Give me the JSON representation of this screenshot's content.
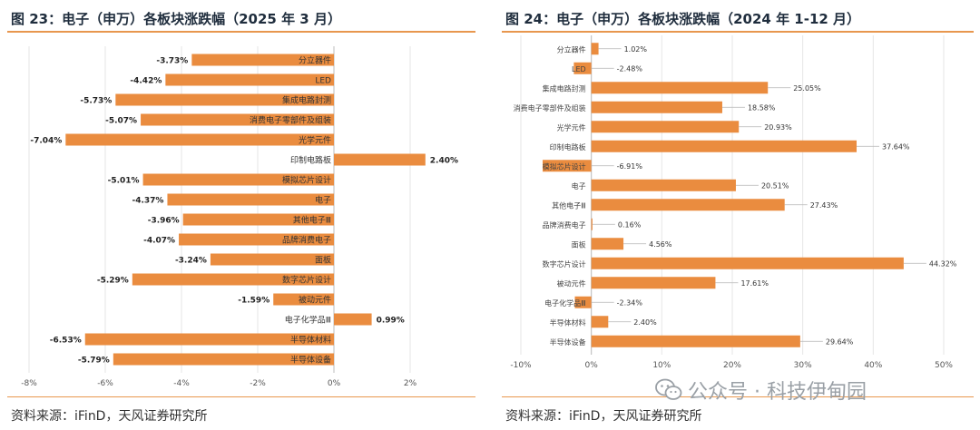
{
  "left": {
    "title": "图 23：电子（申万）各板块涨跌幅（2025 年 3 月）",
    "source": "资料来源：iFinD，天风证券研究所"
  },
  "right": {
    "title": "图 24：电子（申万）各板块涨跌幅（2024 年 1-12 月）",
    "source": "资料来源：iFinD，天风证券研究所"
  },
  "watermark": {
    "text": "公众号 · 科技伊甸园",
    "icon": "wechat-icon"
  },
  "colors": {
    "bar": "#ea8c3f",
    "rule": "#e8974e",
    "grid": "#e6e6e6"
  },
  "chart_data": [
    {
      "type": "bar",
      "orientation": "horizontal",
      "categories": [
        "分立器件",
        "LED",
        "集成电路封测",
        "消费电子零部件及组装",
        "光学元件",
        "印制电路板",
        "模拟芯片设计",
        "电子",
        "其他电子Ⅲ",
        "品牌消费电子",
        "面板",
        "数字芯片设计",
        "被动元件",
        "电子化学品Ⅲ",
        "半导体材料",
        "半导体设备"
      ],
      "values": [
        -3.73,
        -4.42,
        -5.73,
        -5.07,
        -7.04,
        2.4,
        -5.01,
        -4.37,
        -3.96,
        -4.07,
        -3.24,
        -5.29,
        -1.59,
        0.99,
        -6.53,
        -5.79
      ],
      "value_labels": [
        "-3.73%",
        "-4.42%",
        "-5.73%",
        "-5.07%",
        "-7.04%",
        "2.40%",
        "-5.01%",
        "-4.37%",
        "-3.96%",
        "-4.07%",
        "-3.24%",
        "-5.29%",
        "-1.59%",
        "0.99%",
        "-6.53%",
        "-5.79%"
      ],
      "xlim": [
        -8,
        2
      ],
      "xticks": [
        -8,
        -6,
        -4,
        -2,
        0,
        2
      ],
      "xtick_labels": [
        "-8%",
        "-6%",
        "-4%",
        "-2%",
        "0%",
        "2%"
      ],
      "grid": true
    },
    {
      "type": "bar",
      "orientation": "horizontal",
      "categories": [
        "分立器件",
        "LED",
        "集成电路封测",
        "消费电子零部件及组装",
        "光学元件",
        "印制电路板",
        "模拟芯片设计",
        "电子",
        "其他电子Ⅲ",
        "品牌消费电子",
        "面板",
        "数字芯片设计",
        "被动元件",
        "电子化学品Ⅲ",
        "半导体材料",
        "半导体设备"
      ],
      "values": [
        1.02,
        -2.48,
        25.05,
        18.58,
        20.93,
        37.64,
        -6.91,
        20.51,
        27.43,
        0.16,
        4.56,
        44.32,
        17.61,
        -2.34,
        2.4,
        29.64
      ],
      "value_labels": [
        "1.02%",
        "-2.48%",
        "25.05%",
        "18.58%",
        "20.93%",
        "37.64%",
        "-6.91%",
        "20.51%",
        "27.43%",
        "0.16%",
        "4.56%",
        "44.32%",
        "17.61%",
        "-2.34%",
        "2.40%",
        "29.64%"
      ],
      "xlim": [
        -10,
        50
      ],
      "xticks": [
        -10,
        0,
        10,
        20,
        30,
        40,
        50
      ],
      "xtick_labels": [
        "-10%",
        "0%",
        "10%",
        "20%",
        "30%",
        "40%",
        "50%"
      ],
      "grid": true
    }
  ]
}
